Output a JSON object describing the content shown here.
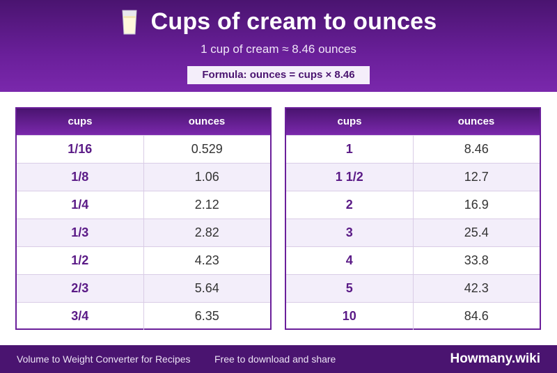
{
  "header": {
    "title": "Cups of cream to ounces",
    "subtitle": "1 cup of cream ≈ 8.46 ounces",
    "formula": "Formula: ounces = cups × 8.46",
    "icon": "milk-glass-icon"
  },
  "tables": [
    {
      "headers": [
        "cups",
        "ounces"
      ],
      "rows": [
        [
          "1/16",
          "0.529"
        ],
        [
          "1/8",
          "1.06"
        ],
        [
          "1/4",
          "2.12"
        ],
        [
          "1/3",
          "2.82"
        ],
        [
          "1/2",
          "4.23"
        ],
        [
          "2/3",
          "5.64"
        ],
        [
          "3/4",
          "6.35"
        ]
      ]
    },
    {
      "headers": [
        "cups",
        "ounces"
      ],
      "rows": [
        [
          "1",
          "8.46"
        ],
        [
          "1 1/2",
          "12.7"
        ],
        [
          "2",
          "16.9"
        ],
        [
          "3",
          "25.4"
        ],
        [
          "4",
          "33.8"
        ],
        [
          "5",
          "42.3"
        ],
        [
          "10",
          "84.6"
        ]
      ]
    }
  ],
  "footer": {
    "left_text": "Volume to Weight Converter for Recipes",
    "middle_text": "Free to download and share",
    "brand": "Howmany.wiki"
  },
  "colors": {
    "accent": "#6a1f9a",
    "dark": "#4a1470",
    "row_alt": "#f3eefa"
  }
}
